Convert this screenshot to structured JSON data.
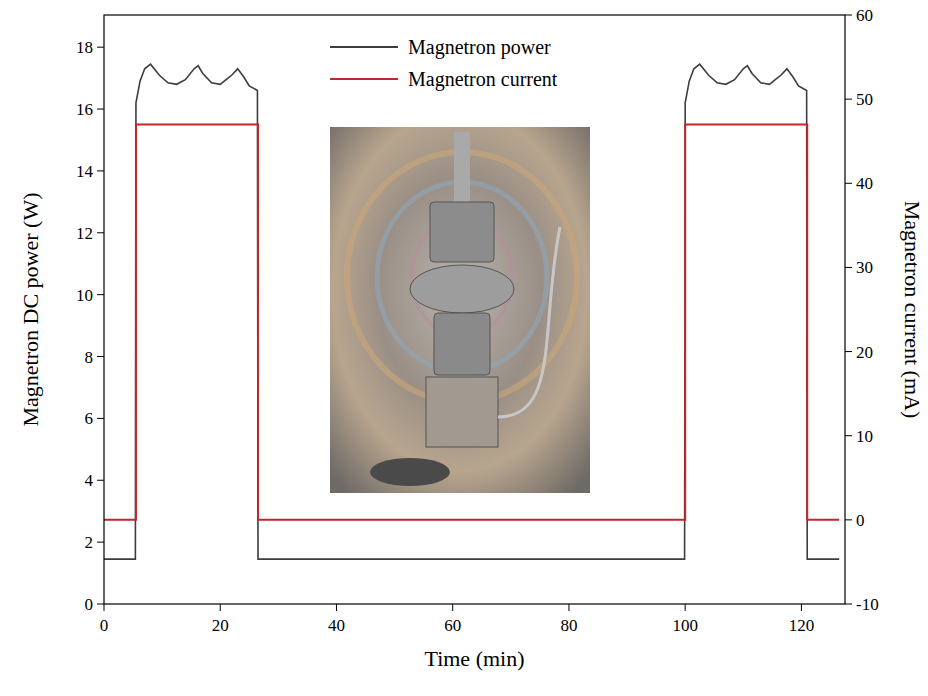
{
  "chart_data": {
    "type": "line",
    "x_label": "Time (min)",
    "y_label": "Magnetron DC power (W)",
    "y2_label": "Magnetron current (mA)",
    "xlim": [
      0,
      127.5
    ],
    "xticks": [
      0,
      20,
      40,
      60,
      80,
      100,
      120
    ],
    "ylim": [
      0,
      19.04
    ],
    "yticks": [
      0,
      2,
      4,
      6,
      8,
      10,
      12,
      14,
      16,
      18
    ],
    "y2lim": [
      -10,
      60
    ],
    "y2ticks": [
      -10,
      0,
      10,
      20,
      30,
      40,
      50,
      60
    ],
    "grid": false,
    "legend": "top",
    "series": [
      {
        "name": "Magnetron power",
        "color": "#3d3d3d",
        "line_style": "solid",
        "x": [
          0,
          5.4,
          5.5,
          6.2,
          7,
          8,
          9.5,
          11,
          12.5,
          14,
          15.5,
          16.2,
          17,
          18.5,
          20,
          21,
          22,
          23,
          24,
          25,
          26.4,
          26.5,
          60,
          99.9,
          100,
          100.7,
          101.5,
          102.5,
          104,
          105.5,
          107,
          108.5,
          110,
          110.7,
          111.5,
          113,
          114.5,
          115.5,
          116.5,
          117.5,
          118.5,
          119.5,
          120.9,
          121,
          126.5
        ],
        "values": [
          1.45,
          1.45,
          16.2,
          16.9,
          17.3,
          17.45,
          17.1,
          16.85,
          16.8,
          16.95,
          17.3,
          17.4,
          17.15,
          16.85,
          16.8,
          16.95,
          17.1,
          17.3,
          17.05,
          16.75,
          16.6,
          1.45,
          1.45,
          1.45,
          16.2,
          16.9,
          17.3,
          17.45,
          17.1,
          16.85,
          16.8,
          16.95,
          17.3,
          17.4,
          17.15,
          16.85,
          16.8,
          16.95,
          17.1,
          17.3,
          17.05,
          16.75,
          16.6,
          1.45,
          1.45
        ]
      },
      {
        "name": "Magnetron current",
        "color": "#c0262b",
        "axis": "y2",
        "line_style": "solid",
        "x": [
          0,
          5.5,
          5.5,
          26.5,
          26.5,
          100,
          100,
          121,
          121,
          126.5
        ],
        "values": [
          0,
          0,
          47,
          47,
          0,
          0,
          47,
          47,
          0,
          0
        ]
      }
    ]
  }
}
